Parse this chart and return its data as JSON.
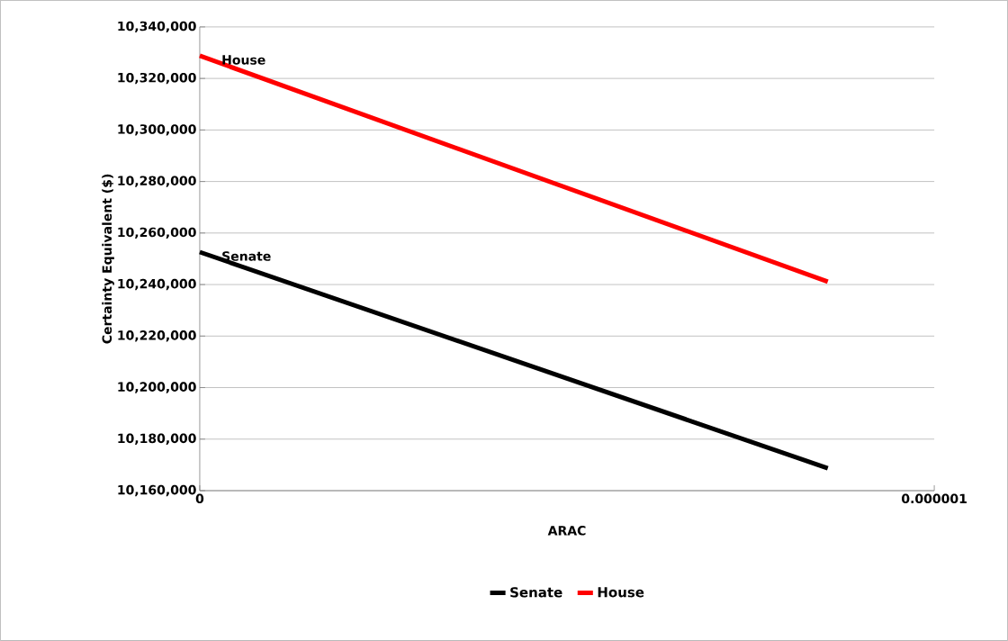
{
  "chart_data": {
    "type": "line",
    "xlabel": "ARAC",
    "ylabel": "Certainty Equivalent ($)",
    "xlim": [
      0,
      1e-06
    ],
    "xticks": [
      0,
      {
        "value": 1e-06,
        "label": "0.000001"
      }
    ],
    "ylim": [
      10160000,
      10340000
    ],
    "yticks": [
      {
        "value": 10160000,
        "label": "10,160,000"
      },
      {
        "value": 10180000,
        "label": "10,180,000"
      },
      {
        "value": 10200000,
        "label": "10,200,000"
      },
      {
        "value": 10220000,
        "label": "10,220,000"
      },
      {
        "value": 10240000,
        "label": "10,240,000"
      },
      {
        "value": 10260000,
        "label": "10,260,000"
      },
      {
        "value": 10280000,
        "label": "10,280,000"
      },
      {
        "value": 10300000,
        "label": "10,300,000"
      },
      {
        "value": 10320000,
        "label": "10,320,000"
      },
      {
        "value": 10340000,
        "label": "10,340,000"
      }
    ],
    "x": [
      0,
      8.55e-07
    ],
    "grid": "y",
    "legend": "bottom",
    "marker": "none",
    "line_style": "solid",
    "series": [
      {
        "name": "Senate",
        "color": "#000000",
        "values": [
          10252600,
          10168700
        ]
      },
      {
        "name": "House",
        "color": "#ff0000",
        "values": [
          10328800,
          10241100
        ]
      }
    ],
    "annotations": [
      {
        "text": "House",
        "x": 0,
        "y": 10328800
      },
      {
        "text": "Senate",
        "x": 0,
        "y": 10252600
      }
    ]
  }
}
